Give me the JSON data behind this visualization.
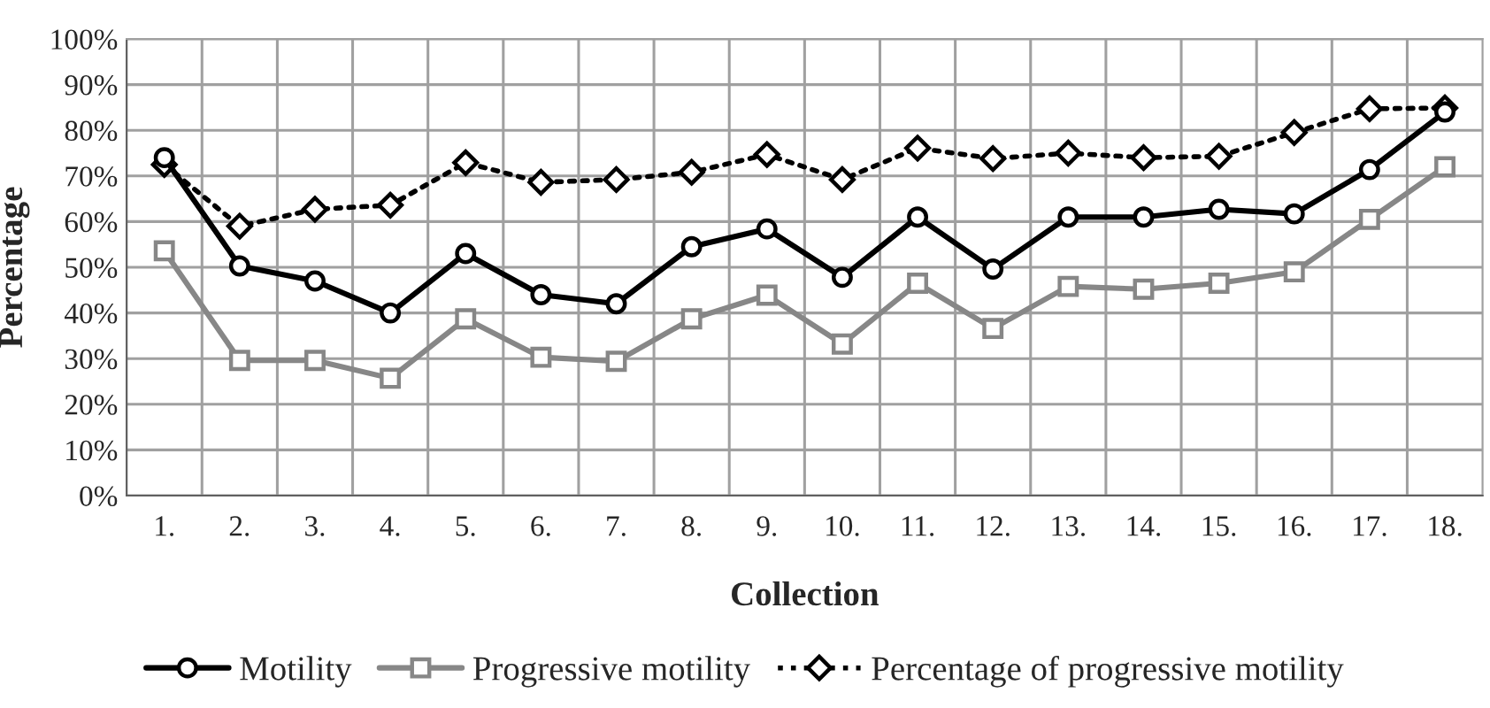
{
  "chart_data": {
    "type": "line",
    "xlabel": "Collection",
    "ylabel": "Percentage",
    "categories": [
      "1.",
      "2.",
      "3.",
      "4.",
      "5.",
      "6.",
      "7.",
      "8.",
      "9.",
      "10.",
      "11.",
      "12.",
      "13.",
      "14.",
      "15.",
      "16.",
      "17.",
      "18."
    ],
    "series": [
      {
        "name": "Motility",
        "color": "#000000",
        "marker": "circle",
        "line_style": "solid",
        "values": [
          74,
          50.3,
          47,
          40,
          53,
          44,
          42,
          54.5,
          58.4,
          47.8,
          61,
          49.6,
          61,
          61,
          62.7,
          61.7,
          71.4,
          84
        ]
      },
      {
        "name": "Progressive motility",
        "color": "#878787",
        "marker": "square",
        "line_style": "solid",
        "values": [
          53.6,
          29.6,
          29.6,
          25.7,
          38.7,
          30.3,
          29.4,
          38.7,
          43.9,
          33.2,
          46.5,
          36.6,
          45.8,
          45.2,
          46.5,
          49,
          60.5,
          72
        ]
      },
      {
        "name": "Percentage of progressive motility",
        "color": "#000000",
        "marker": "diamond",
        "line_style": "dotted",
        "values": [
          72.5,
          59,
          62.7,
          63.6,
          72.9,
          68.6,
          69.2,
          70.8,
          74.7,
          69.2,
          76.1,
          73.8,
          75,
          74,
          74.3,
          79.5,
          84.7,
          84.9
        ]
      }
    ],
    "ylim": [
      0,
      100
    ],
    "yticks": [
      {
        "value": 0,
        "label": "0%"
      },
      {
        "value": 10,
        "label": "10%"
      },
      {
        "value": 20,
        "label": "20%"
      },
      {
        "value": 30,
        "label": "30%"
      },
      {
        "value": 40,
        "label": "40%"
      },
      {
        "value": 50,
        "label": "50%"
      },
      {
        "value": 60,
        "label": "60%"
      },
      {
        "value": 70,
        "label": "70%"
      },
      {
        "value": 80,
        "label": "80%"
      },
      {
        "value": 90,
        "label": "90%"
      },
      {
        "value": 100,
        "label": "100%"
      }
    ],
    "grid": true,
    "legend": "bottom"
  }
}
